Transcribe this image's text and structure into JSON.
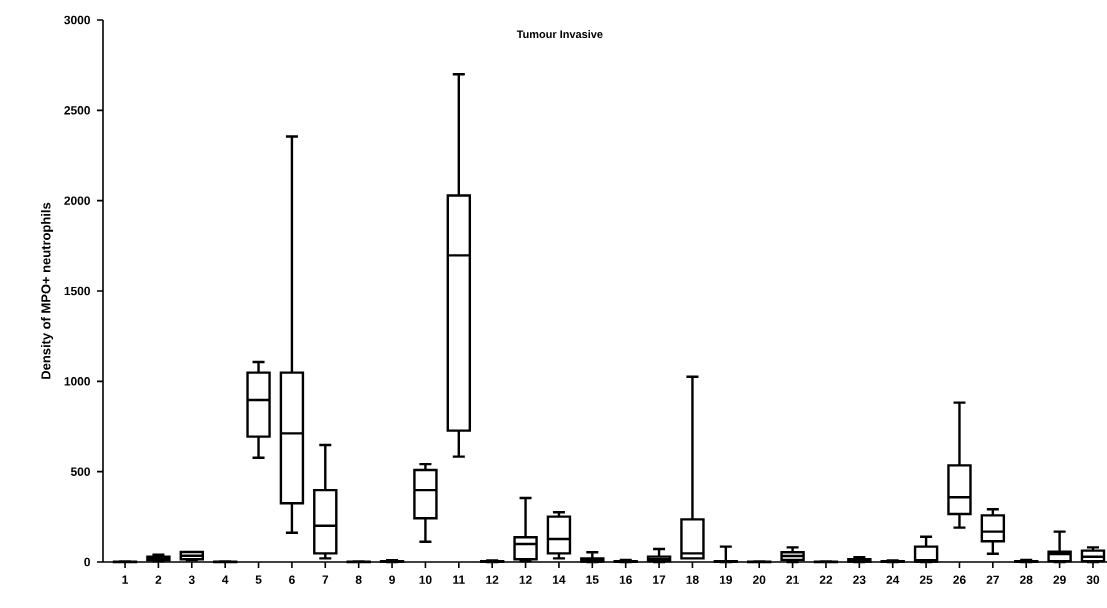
{
  "chart_data": {
    "type": "box",
    "title": "Tumour Invasive",
    "ylabel": "Density of MPO+ neutrophils",
    "color": "#000000",
    "categories": [
      "1",
      "2",
      "3",
      "4",
      "5",
      "6",
      "7",
      "8",
      "9",
      "10",
      "11",
      "12",
      "12",
      "14",
      "15",
      "16",
      "17",
      "18",
      "19",
      "20",
      "21",
      "22",
      "23",
      "24",
      "25",
      "26",
      "27",
      "28",
      "29",
      "30"
    ],
    "ylim": [
      0,
      3000
    ],
    "yticks": [
      0,
      500,
      1000,
      1500,
      2000,
      2500,
      3000
    ],
    "boxes": [
      {
        "low": 0,
        "q1": 0,
        "median": 1,
        "q3": 2,
        "high": 3
      },
      {
        "low": 5,
        "q1": 10,
        "median": 20,
        "q3": 30,
        "high": 40
      },
      {
        "low": 10,
        "q1": 15,
        "median": 35,
        "q3": 55,
        "high": 55
      },
      {
        "low": 0,
        "q1": 0,
        "median": 1,
        "q3": 2,
        "high": 3
      },
      {
        "low": 577,
        "q1": 694,
        "median": 897,
        "q3": 1048,
        "high": 1107
      },
      {
        "low": 162,
        "q1": 325,
        "median": 712,
        "q3": 1048,
        "high": 2355
      },
      {
        "low": 20,
        "q1": 48,
        "median": 201,
        "q3": 398,
        "high": 648
      },
      {
        "low": 0,
        "q1": 0,
        "median": 1,
        "q3": 2,
        "high": 3
      },
      {
        "low": 0,
        "q1": 1,
        "median": 3,
        "q3": 5,
        "high": 10
      },
      {
        "low": 112,
        "q1": 242,
        "median": 398,
        "q3": 509,
        "high": 542
      },
      {
        "low": 583,
        "q1": 727,
        "median": 1697,
        "q3": 2029,
        "high": 2700
      },
      {
        "low": 0,
        "q1": 1,
        "median": 3,
        "q3": 5,
        "high": 8
      },
      {
        "low": 5,
        "q1": 15,
        "median": 100,
        "q3": 137,
        "high": 354
      },
      {
        "low": 20,
        "q1": 48,
        "median": 127,
        "q3": 251,
        "high": 275
      },
      {
        "low": 0,
        "q1": 2,
        "median": 10,
        "q3": 20,
        "high": 54
      },
      {
        "low": 0,
        "q1": 1,
        "median": 3,
        "q3": 5,
        "high": 11
      },
      {
        "low": 0,
        "q1": 5,
        "median": 15,
        "q3": 30,
        "high": 72
      },
      {
        "low": 20,
        "q1": 20,
        "median": 48,
        "q3": 236,
        "high": 1025
      },
      {
        "low": 0,
        "q1": 1,
        "median": 2,
        "q3": 5,
        "high": 85
      },
      {
        "low": 0,
        "q1": 0,
        "median": 1,
        "q3": 2,
        "high": 3
      },
      {
        "low": 0,
        "q1": 11,
        "median": 33,
        "q3": 54,
        "high": 81
      },
      {
        "low": 0,
        "q1": 0,
        "median": 1,
        "q3": 2,
        "high": 3
      },
      {
        "low": 0,
        "q1": 3,
        "median": 8,
        "q3": 15,
        "high": 26
      },
      {
        "low": 0,
        "q1": 1,
        "median": 3,
        "q3": 5,
        "high": 8
      },
      {
        "low": 0,
        "q1": 2,
        "median": 10,
        "q3": 85,
        "high": 140
      },
      {
        "low": 190,
        "q1": 266,
        "median": 358,
        "q3": 535,
        "high": 882
      },
      {
        "low": 46,
        "q1": 115,
        "median": 168,
        "q3": 258,
        "high": 292
      },
      {
        "low": 0,
        "q1": 1,
        "median": 3,
        "q3": 5,
        "high": 12
      },
      {
        "low": 0,
        "q1": 5,
        "median": 44,
        "q3": 57,
        "high": 168
      },
      {
        "low": 0,
        "q1": 5,
        "median": 29,
        "q3": 63,
        "high": 81
      }
    ]
  }
}
